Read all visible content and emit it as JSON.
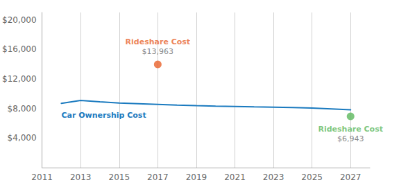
{
  "chart_data": {
    "type": "line",
    "series": [
      {
        "name": "Car Ownership Cost",
        "type": "line",
        "color": "#1a7abf",
        "x": [
          2012,
          2013,
          2014,
          2015,
          2016,
          2017,
          2018,
          2019,
          2020,
          2021,
          2022,
          2023,
          2024,
          2025,
          2026,
          2027
        ],
        "values": [
          8700,
          9100,
          8900,
          8750,
          8650,
          8550,
          8450,
          8380,
          8320,
          8270,
          8220,
          8180,
          8130,
          8060,
          7950,
          7820
        ]
      },
      {
        "name": "Rideshare Cost",
        "type": "scatter",
        "color": "#e8622a",
        "x": [
          2017
        ],
        "values": [
          13963
        ],
        "value_labels": [
          "$13,963"
        ]
      },
      {
        "name": "Rideshare Cost",
        "type": "scatter",
        "color": "#5cb85c",
        "x": [
          2027
        ],
        "values": [
          6943
        ],
        "value_labels": [
          "$6,943"
        ]
      }
    ],
    "xlim": [
      2011,
      2028
    ],
    "xticks": [
      2011,
      2013,
      2015,
      2017,
      2019,
      2021,
      2023,
      2025,
      2027
    ],
    "ylim": [
      0,
      21000
    ],
    "yticks": [
      {
        "value": 4000,
        "label": "$4,000"
      },
      {
        "value": 8000,
        "label": "$8,000"
      },
      {
        "value": 12000,
        "label": "$12,000"
      },
      {
        "value": 16000,
        "label": "$16,000"
      },
      {
        "value": 20000,
        "label": "$20,000"
      }
    ],
    "grid": "x"
  }
}
